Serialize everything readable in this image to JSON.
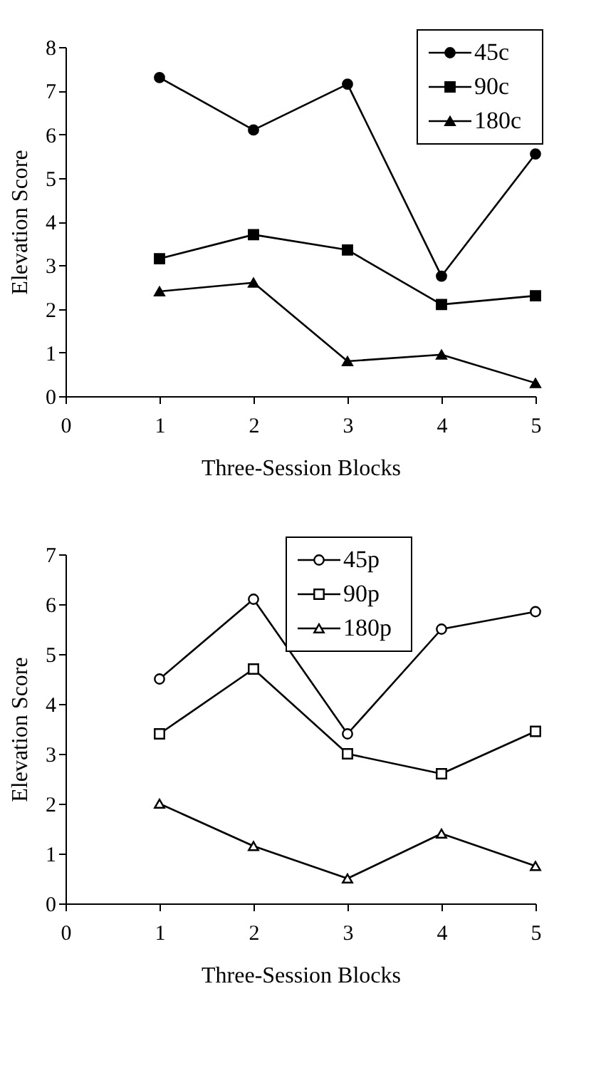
{
  "chart_data": [
    {
      "type": "line",
      "xlabel": "Three-Session Blocks",
      "ylabel": "Elevation Score",
      "x": [
        1,
        2,
        3,
        4,
        5
      ],
      "xlim": [
        0,
        5
      ],
      "xticks": [
        0,
        1,
        2,
        3,
        4,
        5
      ],
      "ylim": [
        0,
        8
      ],
      "yticks": [
        0,
        1,
        2,
        3,
        4,
        5,
        6,
        7,
        8
      ],
      "grid": false,
      "legend": "top right",
      "line_style": "solid",
      "series": [
        {
          "name": "45c",
          "color": "#000000",
          "marker": "circle",
          "values": [
            7.3,
            6.1,
            7.15,
            2.75,
            5.55
          ]
        },
        {
          "name": "90c",
          "color": "#000000",
          "marker": "square",
          "values": [
            3.15,
            3.7,
            3.35,
            2.1,
            2.3
          ]
        },
        {
          "name": "180c",
          "color": "#000000",
          "marker": "triangle",
          "values": [
            2.4,
            2.6,
            0.8,
            0.95,
            0.3
          ]
        }
      ]
    },
    {
      "type": "line",
      "xlabel": "Three-Session Blocks",
      "ylabel": "Elevation Score",
      "x": [
        1,
        2,
        3,
        4,
        5
      ],
      "xlim": [
        0,
        5
      ],
      "xticks": [
        0,
        1,
        2,
        3,
        4,
        5
      ],
      "ylim": [
        0,
        7
      ],
      "yticks": [
        0,
        1,
        2,
        3,
        4,
        5,
        6,
        7
      ],
      "grid": false,
      "legend": "top",
      "line_style": "solid",
      "series": [
        {
          "name": "45p",
          "color": "#000000",
          "marker": "circle",
          "values": [
            4.5,
            6.1,
            3.4,
            5.5,
            5.85
          ]
        },
        {
          "name": "90p",
          "color": "#000000",
          "marker": "square",
          "values": [
            3.4,
            4.7,
            3.0,
            2.6,
            3.45
          ]
        },
        {
          "name": "180p",
          "color": "#000000",
          "marker": "triangle",
          "values": [
            2.0,
            1.15,
            0.5,
            1.4,
            0.75
          ]
        }
      ]
    }
  ]
}
